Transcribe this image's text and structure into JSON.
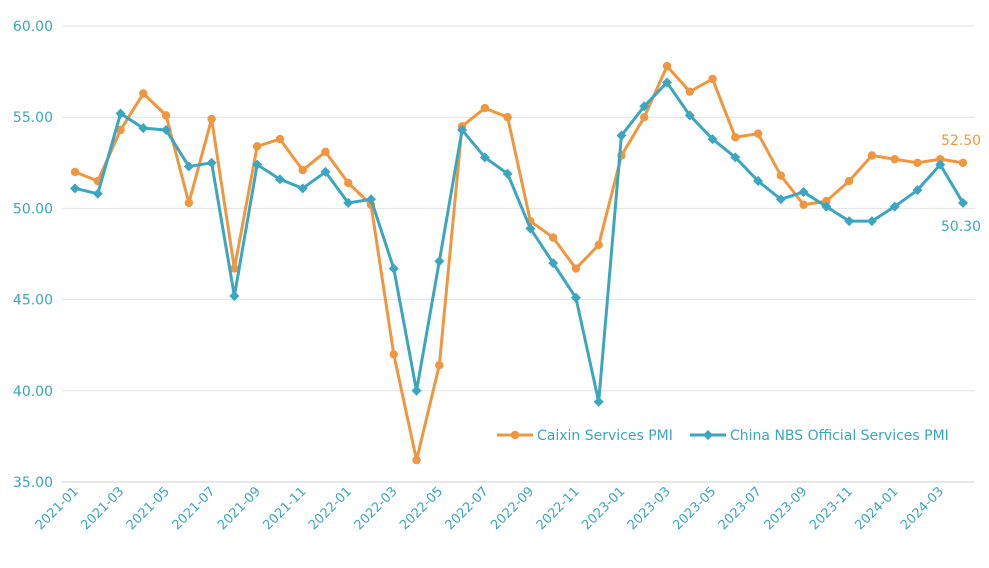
{
  "chart_data": {
    "type": "line",
    "title": "",
    "xlabel": "",
    "ylabel": "",
    "ylim": [
      35,
      60
    ],
    "yticks": [
      "35.00",
      "40.00",
      "45.00",
      "50.00",
      "55.00",
      "60.00"
    ],
    "grid": true,
    "legend_position": "bottom-right",
    "x": [
      "2021-01",
      "2021-02",
      "2021-03",
      "2021-04",
      "2021-05",
      "2021-06",
      "2021-07",
      "2021-08",
      "2021-09",
      "2021-10",
      "2021-11",
      "2021-12",
      "2022-01",
      "2022-02",
      "2022-03",
      "2022-04",
      "2022-05",
      "2022-06",
      "2022-07",
      "2022-08",
      "2022-09",
      "2022-10",
      "2022-11",
      "2022-12",
      "2023-01",
      "2023-02",
      "2023-03",
      "2023-04",
      "2023-05",
      "2023-06",
      "2023-07",
      "2023-08",
      "2023-09",
      "2023-10",
      "2023-11",
      "2023-12",
      "2024-01",
      "2024-02",
      "2024-03",
      "2024-04"
    ],
    "xtick_labels": [
      "2021-01",
      "2021-03",
      "2021-05",
      "2021-07",
      "2021-09",
      "2021-11",
      "2022-01",
      "2022-03",
      "2022-05",
      "2022-07",
      "2022-09",
      "2022-11",
      "2023-01",
      "2023-03",
      "2023-05",
      "2023-07",
      "2023-09",
      "2023-11",
      "2024-01",
      "2024-03"
    ],
    "series": [
      {
        "name": "Caixin Services PMI",
        "color": "#f0963f",
        "marker": "circle",
        "end_label": "52.50",
        "values": [
          52.0,
          51.5,
          54.3,
          56.3,
          55.1,
          50.3,
          54.9,
          46.7,
          53.4,
          53.8,
          52.1,
          53.1,
          51.4,
          50.2,
          42.0,
          36.2,
          41.4,
          54.5,
          55.5,
          55.0,
          49.3,
          48.4,
          46.7,
          48.0,
          52.9,
          55.0,
          57.8,
          56.4,
          57.1,
          53.9,
          54.1,
          51.8,
          50.2,
          50.4,
          51.5,
          52.9,
          52.7,
          52.5,
          52.7,
          52.5
        ]
      },
      {
        "name": "China NBS Official Services PMI",
        "color": "#3aa6bf",
        "marker": "diamond",
        "end_label": "50.30",
        "values": [
          51.1,
          50.8,
          55.2,
          54.4,
          54.3,
          52.3,
          52.5,
          45.2,
          52.4,
          51.6,
          51.1,
          52.0,
          50.3,
          50.5,
          46.7,
          40.0,
          47.1,
          54.3,
          52.8,
          51.9,
          48.9,
          47.0,
          45.1,
          39.4,
          54.0,
          55.6,
          56.9,
          55.1,
          53.8,
          52.8,
          51.5,
          50.5,
          50.9,
          50.1,
          49.3,
          49.3,
          50.1,
          51.0,
          52.4,
          50.3
        ]
      }
    ]
  }
}
